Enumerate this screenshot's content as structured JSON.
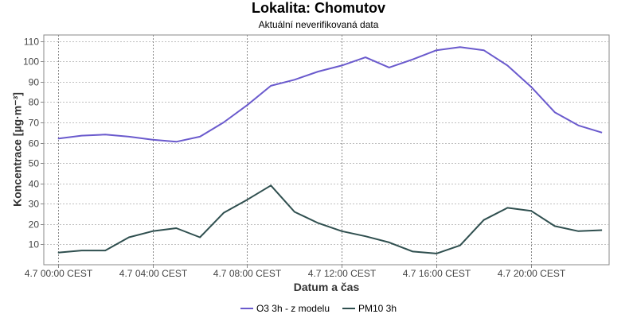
{
  "title": "Lokalita: Chomutov",
  "subtitle": "Aktuální neverifikovaná data",
  "chart_data": {
    "type": "line",
    "title": "Lokalita: Chomutov",
    "subtitle": "Aktuální neverifikovaná data",
    "xlabel": "Datum a čas",
    "ylabel": "Koncentrace [µg·m⁻³]",
    "x": [
      "4.7 00:00",
      "4.7 01:00",
      "4.7 02:00",
      "4.7 03:00",
      "4.7 04:00",
      "4.7 05:00",
      "4.7 06:00",
      "4.7 07:00",
      "4.7 08:00",
      "4.7 09:00",
      "4.7 10:00",
      "4.7 11:00",
      "4.7 12:00",
      "4.7 13:00",
      "4.7 14:00",
      "4.7 15:00",
      "4.7 16:00",
      "4.7 17:00",
      "4.7 18:00",
      "4.7 19:00",
      "4.7 20:00",
      "4.7 21:00",
      "4.7 22:00",
      "4.7 23:00"
    ],
    "x_ticks": [
      "4.7 00:00 CEST",
      "4.7 04:00 CEST",
      "4.7 08:00 CEST",
      "4.7 12:00 CEST",
      "4.7 16:00 CEST",
      "4.7 20:00 CEST"
    ],
    "x_tick_hours": [
      0,
      4,
      8,
      12,
      16,
      20
    ],
    "xlim_hours": [
      -0.6,
      23.3
    ],
    "ylim": [
      0,
      113
    ],
    "y_ticks": [
      10,
      20,
      30,
      40,
      50,
      60,
      70,
      80,
      90,
      100,
      110
    ],
    "grid": true,
    "legend_position": "bottom",
    "series": [
      {
        "name": "O3 3h - z modelu",
        "color": "#6a5acd",
        "values": [
          62,
          63.5,
          64,
          63,
          61.5,
          60.5,
          63,
          70,
          78.5,
          88,
          91,
          95,
          98,
          102,
          97,
          101,
          105.5,
          107,
          105.5,
          98,
          87.5,
          75,
          68.5,
          65
        ]
      },
      {
        "name": "PM10 3h",
        "color": "#2f4f4f",
        "values": [
          6,
          7,
          7,
          13.5,
          16.5,
          18,
          13.5,
          25.5,
          32,
          39,
          26,
          20.5,
          16.5,
          14,
          11,
          6.5,
          5.5,
          9.5,
          22,
          28,
          26.5,
          19,
          16.5,
          17
        ]
      }
    ]
  }
}
